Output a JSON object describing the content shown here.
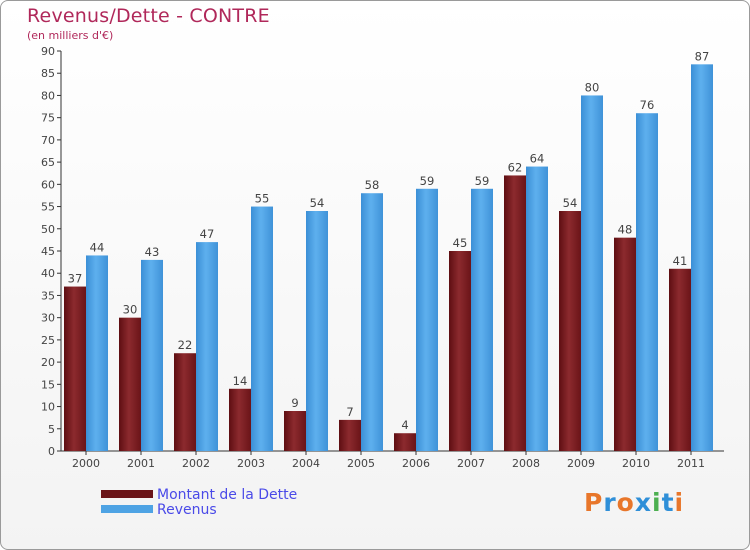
{
  "chart_data": {
    "type": "bar",
    "title": "Revenus/Dette - CONTRE",
    "subtitle": "(en milliers d'€)",
    "categories": [
      "2000",
      "2001",
      "2002",
      "2003",
      "2004",
      "2005",
      "2006",
      "2007",
      "2008",
      "2009",
      "2010",
      "2011"
    ],
    "series": [
      {
        "name": "Montant de la Dette",
        "values": [
          37,
          30,
          22,
          14,
          9,
          7,
          4,
          45,
          62,
          54,
          48,
          41
        ],
        "color": "#7a1a1e"
      },
      {
        "name": "Revenus",
        "values": [
          44,
          43,
          47,
          55,
          54,
          58,
          59,
          59,
          64,
          80,
          76,
          87
        ],
        "color": "#4ea3e4"
      }
    ],
    "ylim": [
      0,
      90
    ],
    "ytick_step": 5,
    "grid": false,
    "legend_position": "bottom-left",
    "data_labels": true
  },
  "logo": {
    "text": "Proxiti",
    "colors": [
      "#e8762a",
      "#2f8fd8",
      "#e8762a",
      "#2f8fd8",
      "#4caf50",
      "#2f8fd8",
      "#e8762a"
    ]
  }
}
